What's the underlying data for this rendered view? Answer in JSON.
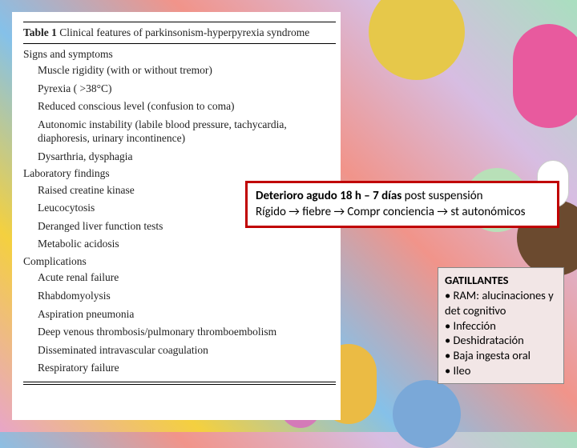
{
  "table": {
    "title_bold": "Table 1",
    "title_rest": "Clinical features of parkinsonism-hyperpyrexia syndrome",
    "sections": [
      {
        "head": "Signs and symptoms",
        "items": [
          "Muscle rigidity (with or without tremor)",
          "Pyrexia ( >38°C)",
          "Reduced conscious level (confusion to coma)",
          "Autonomic instability (labile blood pressure, tachycardia, diaphoresis, urinary incontinence)",
          "Dysarthria, dysphagia"
        ]
      },
      {
        "head": "Laboratory findings",
        "items": [
          "Raised creatine kinase",
          "Leucocytosis",
          "Deranged liver function tests",
          "Metabolic acidosis"
        ]
      },
      {
        "head": "Complications",
        "items": [
          "Acute renal failure",
          "Rhabdomyolysis",
          "Aspiration pneumonia",
          "Deep venous thrombosis/pulmonary thromboembolism",
          "Disseminated intravascular coagulation",
          "Respiratory failure"
        ]
      }
    ]
  },
  "redBox": {
    "line1_bold_a": "Deterioro agudo 18 h – 7 días",
    "line1_rest": " post suspensión",
    "line2_a": "Rígido ",
    "line2_b": " fiebre ",
    "line2_c": "   Compr conciencia ",
    "line2_d": " st autonómicos"
  },
  "pinkBox": {
    "heading": "GATILLANTES",
    "bullets": [
      "• RAM: alucinaciones y det cognitivo",
      "• Infección",
      "• Deshidratación",
      "• Baja ingesta oral",
      "• Ileo"
    ]
  },
  "arrow": "→",
  "colors": {
    "red_border": "#c00000",
    "pink_bg": "#f2e6e6"
  }
}
